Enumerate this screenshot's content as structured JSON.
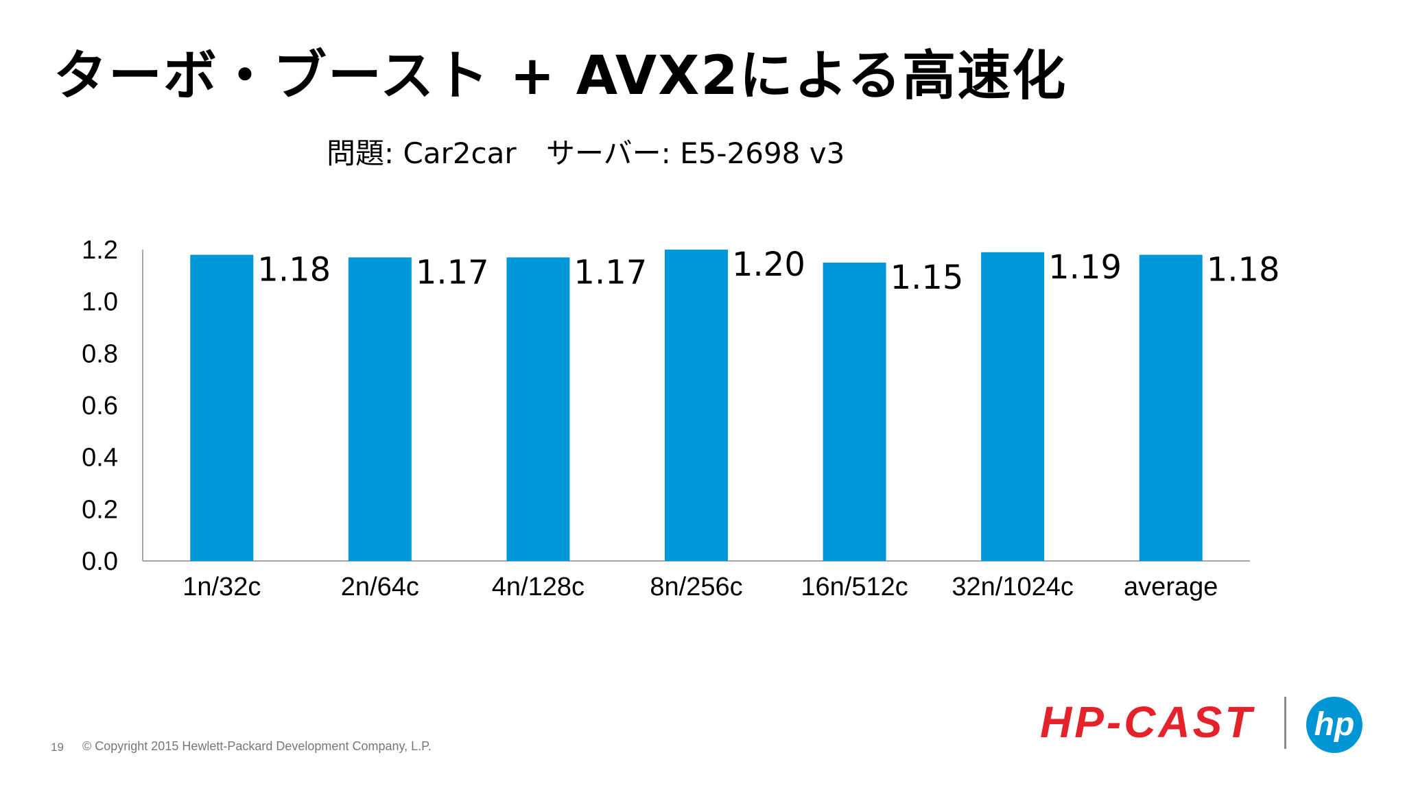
{
  "slide": {
    "title": "ターボ・ブースト + AVX2による高速化",
    "problem_label": "問題: Car2car",
    "server_label": "サーバー: E5-2698 v3",
    "page_number": "19",
    "copyright": "© Copyright 2015 Hewlett-Packard Development Company, L.P.",
    "logo_hpcast": "HP-CAST",
    "logo_hp": "hp"
  },
  "colors": {
    "bar": "#0098d8",
    "axis": "#a6a6a6",
    "text": "#000000",
    "logo_red": "#e4222b",
    "logo_blue": "#0096d6"
  },
  "chart_data": {
    "type": "bar",
    "title": "",
    "xlabel": "",
    "ylabel": "",
    "ylim": [
      0,
      1.2
    ],
    "yticks": [
      "0.0",
      "0.2",
      "0.4",
      "0.6",
      "0.8",
      "1.0",
      "1.2"
    ],
    "categories": [
      "1n/32c",
      "2n/64c",
      "4n/128c",
      "8n/256c",
      "16n/512c",
      "32n/1024c",
      "average"
    ],
    "values": [
      1.18,
      1.17,
      1.17,
      1.2,
      1.15,
      1.19,
      1.18
    ],
    "data_labels": [
      "1.18",
      "1.17",
      "1.17",
      "1.20",
      "1.15",
      "1.19",
      "1.18"
    ],
    "grid": false,
    "legend": "none"
  }
}
